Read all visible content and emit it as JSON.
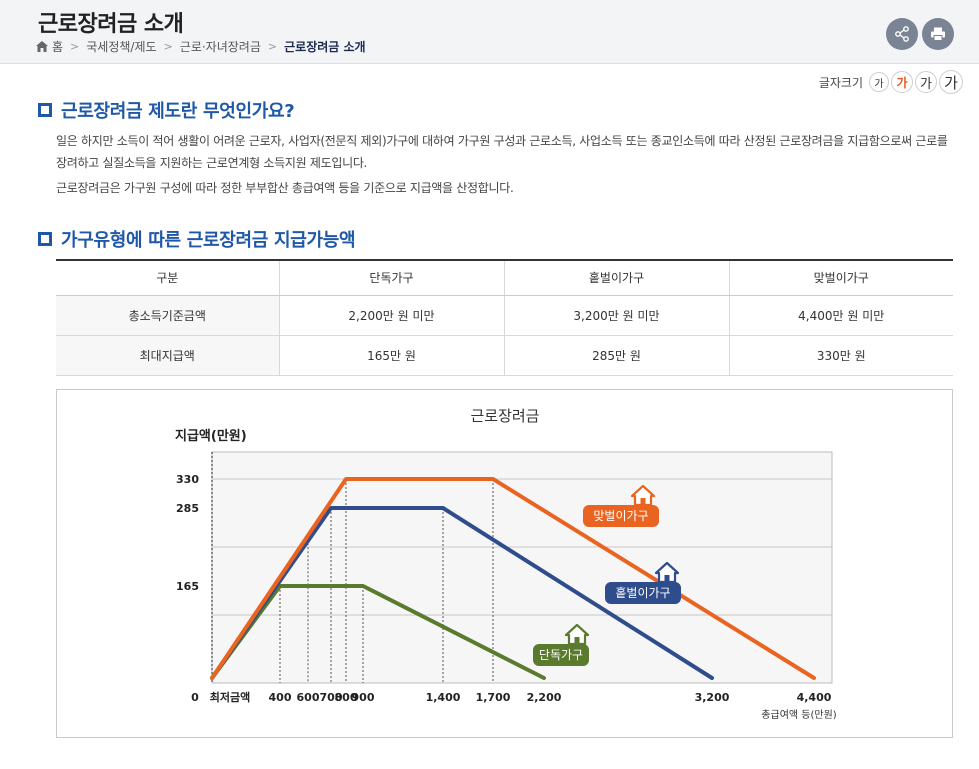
{
  "header": {
    "title": "근로장려금 소개",
    "breadcrumb": [
      "홈",
      "국세정책/제도",
      "근로·자녀장려금",
      "근로장려금 소개"
    ]
  },
  "fontsize": {
    "label": "글자크기",
    "buttons": [
      "가",
      "가",
      "가",
      "가"
    ]
  },
  "section1": {
    "title": "근로장려금 제도란 무엇인가요?",
    "paragraph1": "일은 하지만 소득이 적어 생활이 어려운 근로자, 사업자(전문직 제외)가구에 대하여 가구원 구성과 근로소득, 사업소득 또는 종교인소득에 따라 산정된 근로장려금을 지급함으로써 근로를 장려하고 실질소득을 지원하는 근로연계형 소득지원 제도입니다.",
    "paragraph2": "근로장려금은 가구원 구성에 따라 정한 부부합산 총급여액 등을 기준으로 지급액을 산정합니다."
  },
  "section2": {
    "title": "가구유형에 따른 근로장려금 지급가능액"
  },
  "table": {
    "headers": [
      "구분",
      "단독가구",
      "홑벌이가구",
      "맞벌이가구"
    ],
    "rows": [
      [
        "총소득기준금액",
        "2,200만 원 미만",
        "3,200만 원 미만",
        "4,400만 원 미만"
      ],
      [
        "최대지급액",
        "165만 원",
        "285만 원",
        "330만 원"
      ]
    ]
  },
  "chart_data": {
    "type": "line",
    "title": "근로장려금",
    "ylabel": "지급액(만원)",
    "xlabel": "총급여액 등(만원)",
    "x_origin_label": "최저금액",
    "xlim": [
      0,
      4400
    ],
    "ylim": [
      0,
      330
    ],
    "y_ticks": [
      0,
      165,
      285,
      330
    ],
    "x_ticks": [
      400,
      600,
      700,
      800,
      900,
      1400,
      1700,
      2200,
      3200,
      4400
    ],
    "grid": true,
    "series": [
      {
        "name": "단독가구",
        "color": "#5a7a2e",
        "points": [
          [
            0,
            0
          ],
          [
            400,
            165
          ],
          [
            900,
            165
          ],
          [
            2200,
            0
          ]
        ]
      },
      {
        "name": "홑벌이가구",
        "color": "#2f4c8c",
        "points": [
          [
            0,
            0
          ],
          [
            700,
            285
          ],
          [
            1400,
            285
          ],
          [
            3200,
            0
          ]
        ]
      },
      {
        "name": "맞벌이가구",
        "color": "#ea6421",
        "points": [
          [
            0,
            0
          ],
          [
            800,
            330
          ],
          [
            1700,
            330
          ],
          [
            4400,
            0
          ]
        ]
      }
    ]
  },
  "colors": {
    "accent": "#1f58a8",
    "button_bg": "#7a8495"
  },
  "icons": {
    "share": "share-icon",
    "print": "print-icon",
    "home": "home-icon",
    "house": "house-icon"
  }
}
